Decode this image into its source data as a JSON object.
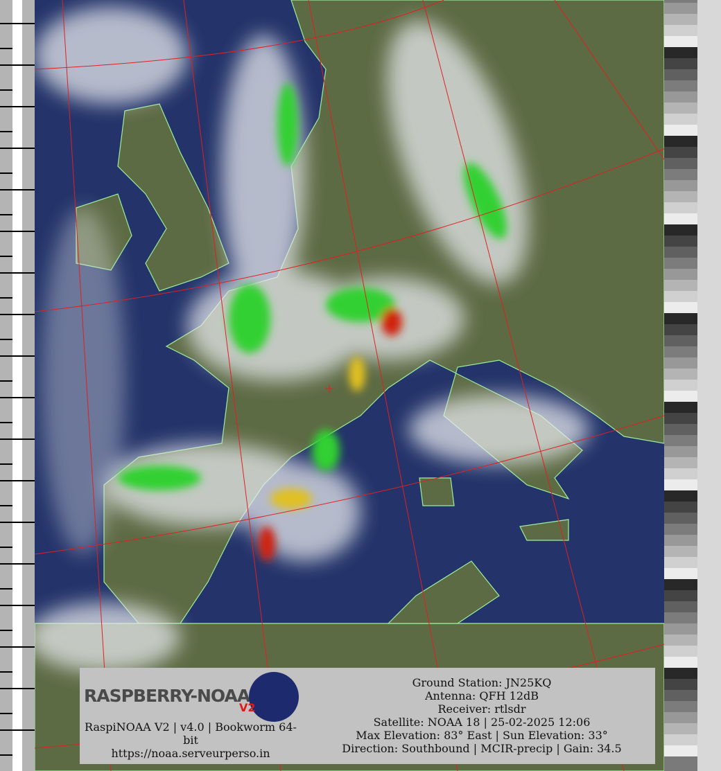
{
  "image": {
    "type": "NOAA APT satellite image, MCIR-precip enhancement",
    "colors": {
      "sea": "#24346a",
      "land": "#5d6b45",
      "cloud": "#e6e8ec",
      "graticule": "#e02020",
      "borders": "#e8e040",
      "coastline": "#9cf09c",
      "panel": "#c2c2c2"
    }
  },
  "overlay": {
    "logo_text": "RASPBERRY-NOAA",
    "logo_badge": "V2",
    "left_lines": [
      "RaspiNOAA V2 | v4.0 | Bookworm 64-bit",
      "https://noaa.serveurperso.in"
    ],
    "info_lines": [
      "Ground Station: JN25KQ",
      "Antenna: QFH 12dB",
      "Receiver: rtlsdr",
      "Satellite: NOAA 18 | 25-02-2025 12:06",
      "Max Elevation: 83° East | Sun Elevation: 33°",
      "Direction: Southbound | MCIR-precip | Gain: 34.5"
    ]
  }
}
